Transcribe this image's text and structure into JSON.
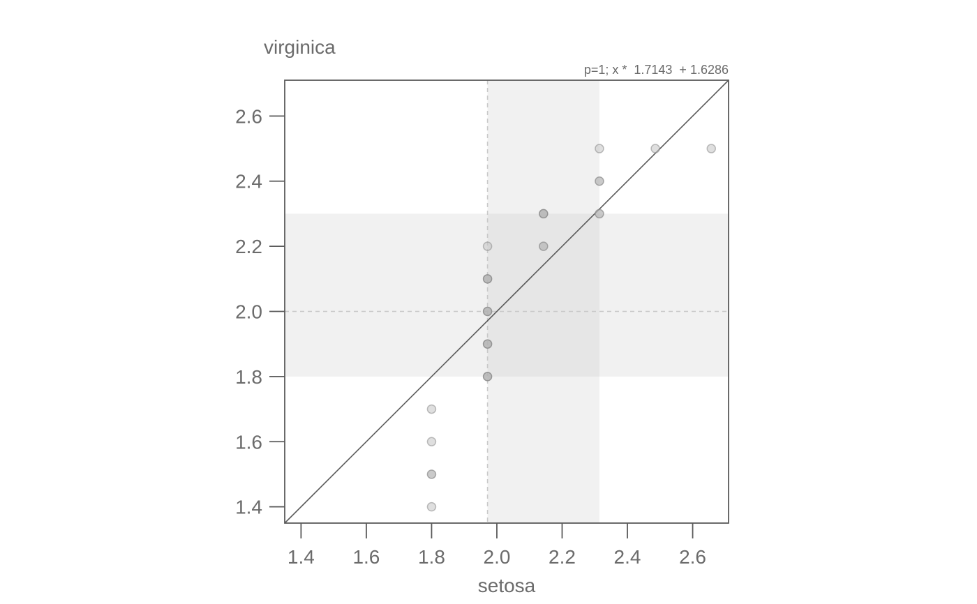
{
  "chart_data": {
    "type": "scatter",
    "subtype": "quantile-quantile plot",
    "xlabel": "setosa",
    "ylabel": "virginica",
    "annotation": "p=1; x *  1.7143  + 1.6286",
    "fit_line": {
      "slope": 1.7143,
      "intercept": 1.6286
    },
    "xlim": [
      1.35,
      2.71
    ],
    "ylim": [
      1.35,
      2.71
    ],
    "x_ticks": [
      "1.4",
      "1.6",
      "1.8",
      "2.0",
      "2.2",
      "2.4",
      "2.6"
    ],
    "y_ticks": [
      "1.4",
      "1.6",
      "1.8",
      "2.0",
      "2.2",
      "2.4",
      "2.6"
    ],
    "reference_lines": {
      "x": 1.9714,
      "y": 2.0
    },
    "x_band": [
      1.9714,
      2.3143
    ],
    "y_band": [
      1.8,
      2.3
    ],
    "points": [
      {
        "x": 1.8,
        "y": 1.4,
        "n": 1
      },
      {
        "x": 1.8,
        "y": 1.5,
        "n": 2
      },
      {
        "x": 1.8,
        "y": 1.6,
        "n": 1
      },
      {
        "x": 1.8,
        "y": 1.7,
        "n": 1
      },
      {
        "x": 1.9714,
        "y": 1.8,
        "n": 3
      },
      {
        "x": 1.9714,
        "y": 1.9,
        "n": 3
      },
      {
        "x": 1.9714,
        "y": 2.0,
        "n": 3
      },
      {
        "x": 1.9714,
        "y": 2.1,
        "n": 3
      },
      {
        "x": 1.9714,
        "y": 2.2,
        "n": 1
      },
      {
        "x": 2.1429,
        "y": 2.2,
        "n": 2
      },
      {
        "x": 2.1429,
        "y": 2.3,
        "n": 3
      },
      {
        "x": 2.3143,
        "y": 2.3,
        "n": 2
      },
      {
        "x": 2.3143,
        "y": 2.4,
        "n": 2
      },
      {
        "x": 2.3143,
        "y": 2.5,
        "n": 1
      },
      {
        "x": 2.4857,
        "y": 2.5,
        "n": 1
      },
      {
        "x": 2.6571,
        "y": 2.5,
        "n": 1
      }
    ],
    "colors": {
      "axis": "#5a5a5a",
      "text": "#6b6b6b",
      "band": "#f1f1f1",
      "band_overlap": "#e6e6e6",
      "reference_line": "#c8c8c8",
      "point_fill": "#c4c4c4",
      "point_stroke": "#8a8a8a"
    }
  }
}
